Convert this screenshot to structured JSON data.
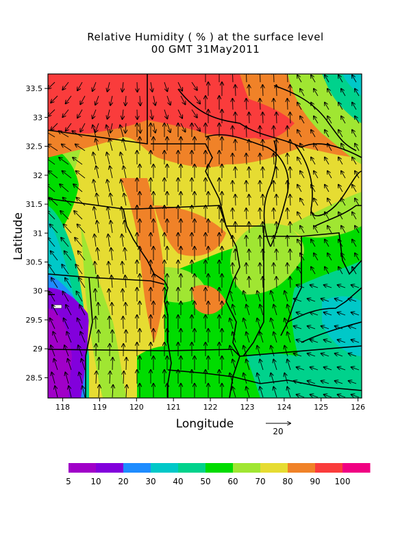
{
  "title_line1": "Relative Humidity ( % ) at the surface level",
  "title_line2": "00 GMT 31May2011",
  "xlabel": "Longitude",
  "ylabel": "Latitude",
  "x_ticks": [
    "118",
    "119",
    "120",
    "121",
    "122",
    "123",
    "124",
    "125",
    "126"
  ],
  "y_ticks": [
    "28.5",
    "29",
    "29.5",
    "30",
    "30.5",
    "31",
    "31.5",
    "32",
    "32.5",
    "33",
    "33.5"
  ],
  "vector_scale_label": "20",
  "colorbar": {
    "labels": [
      "5",
      "10",
      "20",
      "30",
      "40",
      "50",
      "60",
      "70",
      "80",
      "90",
      "100"
    ],
    "colors": [
      "#a000c8",
      "#8200dc",
      "#1e8cff",
      "#00c8c8",
      "#00d28c",
      "#00dc00",
      "#a0e632",
      "#e6dc32",
      "#f08228",
      "#fa3c3c",
      "#f00082"
    ]
  },
  "chart_data": {
    "type": "heatmap",
    "title": "Relative Humidity ( % ) at the surface level",
    "subtitle": "00 GMT 31May2011",
    "xlabel": "Longitude",
    "ylabel": "Latitude",
    "xlim": [
      117.6,
      126.1
    ],
    "ylim": [
      28.15,
      33.75
    ],
    "units": "%",
    "color_levels": [
      5,
      10,
      20,
      30,
      40,
      50,
      60,
      70,
      80,
      90,
      100
    ],
    "regions": [
      {
        "area": "north-west",
        "rh_range": [
          80,
          90
        ]
      },
      {
        "area": "far west (around 118, 29-30)",
        "rh_range": [
          5,
          20
        ]
      },
      {
        "area": "central band (120-121)",
        "rh_range": [
          70,
          90
        ]
      },
      {
        "area": "south central and south-east",
        "rh_range": [
          50,
          60
        ]
      },
      {
        "area": "east (124-126, 29-30)",
        "rh_range": [
          40,
          50
        ]
      }
    ],
    "vector_reference": 20
  }
}
